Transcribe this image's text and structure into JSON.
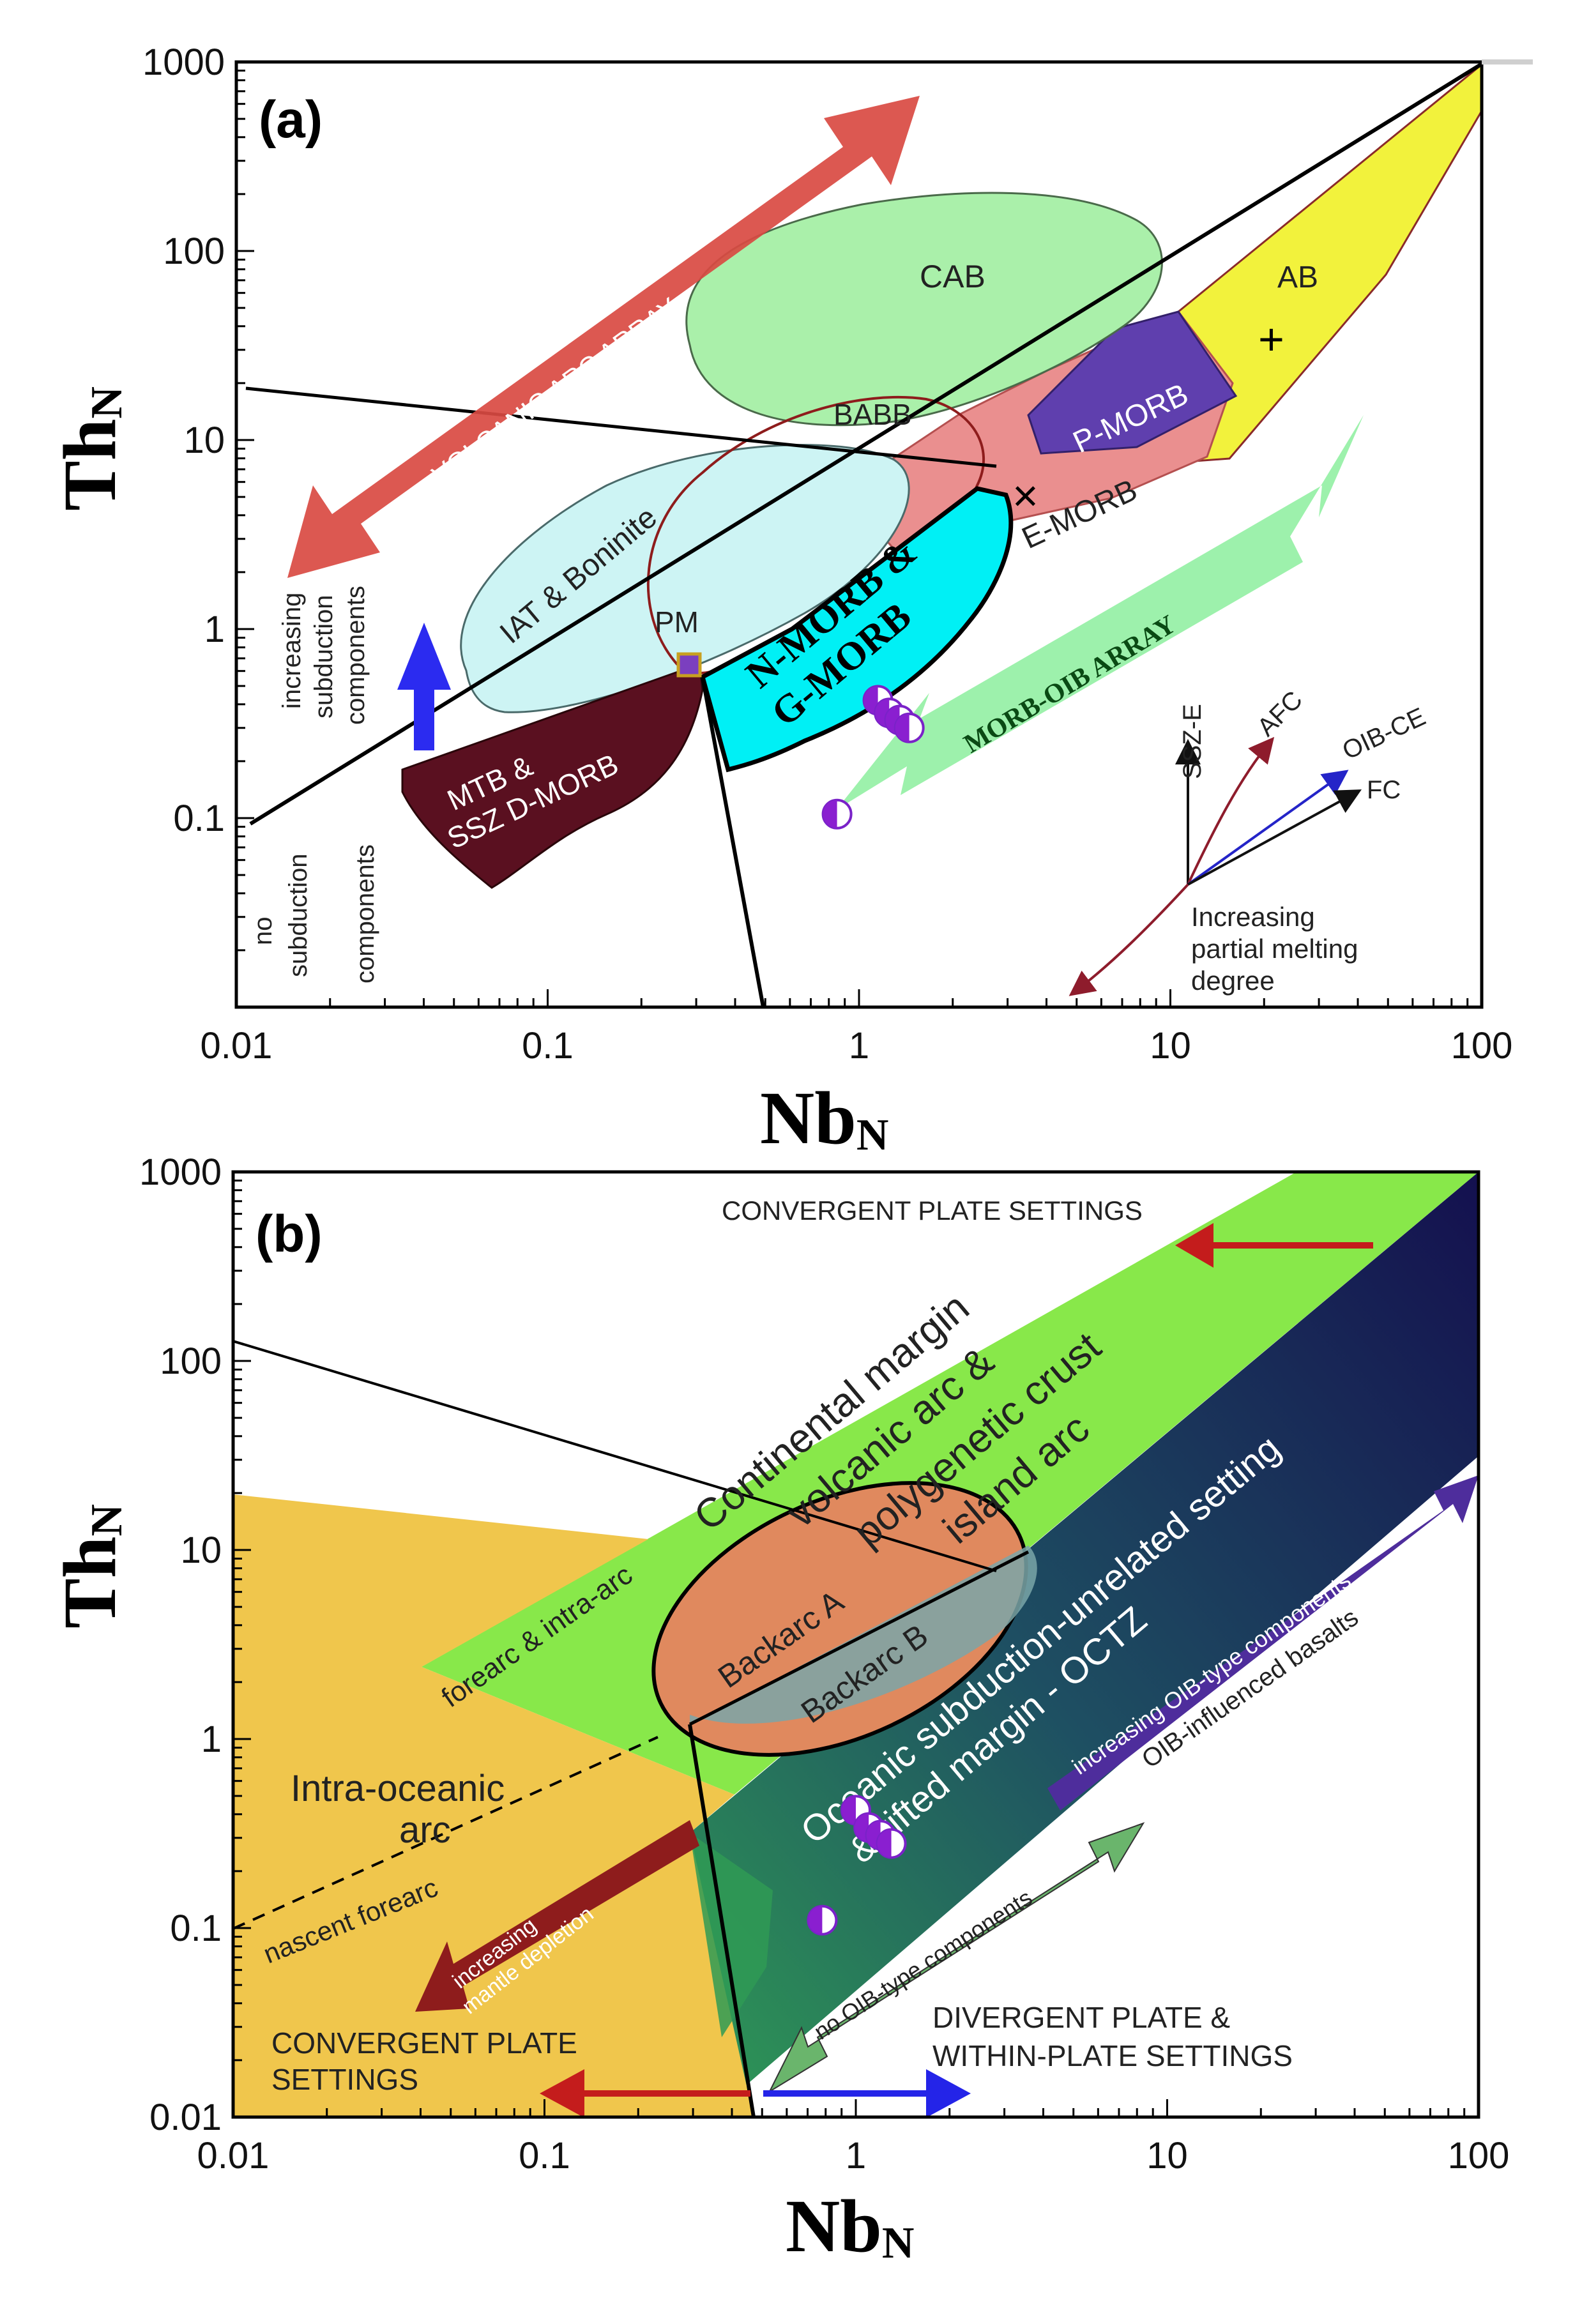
{
  "chart_data": [
    {
      "panel": "(a)",
      "type": "scatter",
      "xscale": "log",
      "yscale": "log",
      "xlim": [
        0.01,
        100
      ],
      "ylim": [
        0.01,
        1000
      ],
      "xticks": [
        "0.01",
        "0.1",
        "1",
        "10",
        "100"
      ],
      "yticks": [
        "1000",
        "100",
        "10",
        "1",
        "0.1"
      ],
      "xlabel": {
        "main": "Nb",
        "sub": "N"
      },
      "ylabel": {
        "main": "Th",
        "sub": "N"
      },
      "points": [
        {
          "x": 1.15,
          "y": 0.42
        },
        {
          "x": 1.25,
          "y": 0.36
        },
        {
          "x": 1.35,
          "y": 0.33
        },
        {
          "x": 1.45,
          "y": 0.3
        },
        {
          "x": 0.85,
          "y": 0.105
        }
      ],
      "labels": {
        "volcanic_arc": "VOLCANIC ARC ARRAY",
        "cab": "CAB",
        "ab": "AB",
        "babb": "BABB",
        "pmorb": "P-MORB",
        "emorb": "E-MORB",
        "iat": "IAT & Boninite",
        "pm": "PM",
        "nmorb1": "N-MORB &",
        "nmorb2": "G-MORB",
        "mtb1": "MTB &",
        "mtb2": "SSZ D-MORB",
        "morb_oib": "MORB-OIB ARRAY",
        "inc_sub1": "increasing",
        "inc_sub2": "subduction",
        "inc_sub3": "components",
        "no_sub1": "no",
        "no_sub2": "subduction",
        "no_sub3": "components",
        "ssze": "SSZ-E",
        "afc": "AFC",
        "oibce": "OIB-CE",
        "fc": "FC",
        "melt1": "Increasing",
        "melt2": "partial melting",
        "melt3": "degree"
      }
    },
    {
      "panel": "(b)",
      "type": "scatter",
      "xscale": "log",
      "yscale": "log",
      "xlim": [
        0.01,
        100
      ],
      "ylim": [
        0.01,
        1000
      ],
      "xticks": [
        "0.01",
        "0.1",
        "1",
        "10",
        "100"
      ],
      "yticks": [
        "1000",
        "100",
        "10",
        "1",
        "0.1",
        "0.01"
      ],
      "xlabel": {
        "main": "Nb",
        "sub": "N"
      },
      "ylabel": {
        "main": "Th",
        "sub": "N"
      },
      "points": [
        {
          "x": 1.0,
          "y": 0.42
        },
        {
          "x": 1.1,
          "y": 0.34
        },
        {
          "x": 1.2,
          "y": 0.31
        },
        {
          "x": 1.3,
          "y": 0.28
        },
        {
          "x": 0.78,
          "y": 0.11
        }
      ],
      "labels": {
        "conv_top": "CONVERGENT PLATE SETTINGS",
        "cont1": "Continental margin",
        "cont2": "volcanic arc &",
        "cont3": "polygenetic crust",
        "cont4": "island arc",
        "ocean1": "Oceanic subduction-unrelated setting",
        "ocean2": "& rifted margin - OCTZ",
        "backA": "Backarc A",
        "backB": "Backarc B",
        "forearc": "forearc & intra-arc",
        "intra1": "Intra-oceanic",
        "intra2": "arc",
        "nascent": "nascent forearc",
        "mantle1": "increasing",
        "mantle2": "mantle depletion",
        "inc_oib": "increasing OIB-type components",
        "oib_infl": "OIB-influenced basalts",
        "no_oib": "no OIB-type components",
        "div1": "DIVERGENT PLATE &",
        "div2": "WITHIN-PLATE SETTINGS",
        "conv_bot1": "CONVERGENT PLATE",
        "conv_bot2": "SETTINGS"
      }
    }
  ]
}
